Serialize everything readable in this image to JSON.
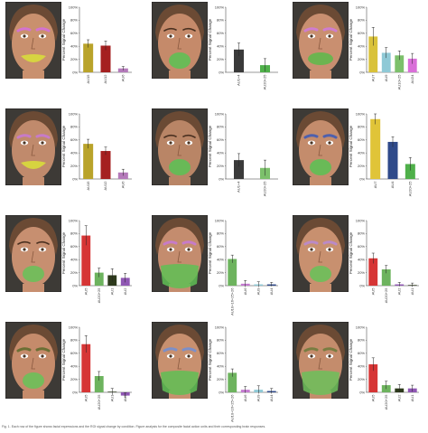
{
  "figure": {
    "caption": "Fig. 1. Each row of the figure shows facial expressions and the ROI signal change by condition. Figure analysis for the composite facial action units and their corresponding brain responses."
  },
  "chart_data": [
    {
      "type": "bar",
      "ylabel": "Percent Signal Change",
      "yticks": [
        "0%",
        "20%",
        "40%",
        "60%",
        "80%",
        "100%"
      ],
      "ylim": [
        0,
        1
      ],
      "categories": [
        "AU15",
        "AU12",
        "AU6"
      ],
      "values": [
        0.44,
        0.41,
        0.06
      ],
      "errors": [
        0.06,
        0.07,
        0.03
      ],
      "colors": [
        "#b9a32a",
        "#a52020",
        "#b47aba"
      ],
      "face": {
        "skin": "#c9906e",
        "mouth": "#d8db3c",
        "brows": "#d66fe1",
        "mouthStyle": "smile"
      }
    },
    {
      "type": "bar",
      "ylabel": "Percent Signal Change",
      "yticks": [
        "0%",
        "20%",
        "40%",
        "60%",
        "80%",
        "100%"
      ],
      "ylim": [
        0,
        1
      ],
      "categories": [
        "AU1+4",
        "AU20+25"
      ],
      "values": [
        0.35,
        0.11
      ],
      "errors": [
        0.1,
        0.1
      ],
      "colors": [
        "#3a3a3a",
        "#4fb04a"
      ],
      "face": {
        "skin": "#c58a6a",
        "mouth": "#5fbf55",
        "brows": "",
        "mouthStyle": "open"
      }
    },
    {
      "type": "bar",
      "ylabel": "Percent Signal Change",
      "yticks": [
        "0%",
        "20%",
        "40%",
        "60%",
        "80%",
        "100%"
      ],
      "ylim": [
        0,
        1
      ],
      "categories": [
        "AU7",
        "AU9",
        "AU10+25",
        "AU24"
      ],
      "values": [
        0.55,
        0.3,
        0.26,
        0.21
      ],
      "errors": [
        0.14,
        0.08,
        0.07,
        0.08
      ],
      "colors": [
        "#d9c23a",
        "#8fc9d6",
        "#7cc06b",
        "#d96fd8"
      ],
      "face": {
        "skin": "#c98f70",
        "mouth": "#62b84c",
        "brows": "#d07ae0",
        "mouthStyle": "wide"
      }
    },
    {
      "type": "bar",
      "ylabel": "Percent Signal Change",
      "yticks": [
        "0%",
        "20%",
        "40%",
        "60%",
        "80%",
        "100%"
      ],
      "ylim": [
        0,
        1
      ],
      "categories": [
        "AU15",
        "AU12",
        "AU6"
      ],
      "values": [
        0.54,
        0.43,
        0.1
      ],
      "errors": [
        0.07,
        0.06,
        0.05
      ],
      "colors": [
        "#b9a32a",
        "#a52020",
        "#b47aba"
      ],
      "face": {
        "skin": "#c08a6c",
        "mouth": "#d8db3c",
        "brows": "#c878d8",
        "mouthStyle": "smile"
      }
    },
    {
      "type": "bar",
      "ylabel": "Percent Signal Change",
      "yticks": [
        "0%",
        "20%",
        "40%",
        "60%",
        "80%",
        "100%"
      ],
      "ylim": [
        0,
        1
      ],
      "categories": [
        "AU1+4",
        "AU20+25"
      ],
      "values": [
        0.29,
        0.17
      ],
      "errors": [
        0.1,
        0.12
      ],
      "colors": [
        "#3a3a3a",
        "#7cc06b"
      ],
      "face": {
        "skin": "#b98566",
        "mouth": "#5fbf55",
        "brows": "",
        "mouthStyle": "open"
      }
    },
    {
      "type": "bar",
      "ylabel": "Percent Signal Change",
      "yticks": [
        "0%",
        "20%",
        "40%",
        "60%",
        "80%",
        "100%"
      ],
      "ylim": [
        0,
        1
      ],
      "categories": [
        "AU7",
        "AU4",
        "AU20+25"
      ],
      "values": [
        0.92,
        0.57,
        0.23
      ],
      "errors": [
        0.08,
        0.08,
        0.1
      ],
      "colors": [
        "#e0c438",
        "#2f4a8a",
        "#4fb04a"
      ],
      "face": {
        "skin": "#c48c6c",
        "mouth": "#5fbf55",
        "brows": "#3a58b8",
        "mouthStyle": "open"
      }
    },
    {
      "type": "bar",
      "ylabel": "Percent Signal Change",
      "yticks": [
        "0%",
        "20%",
        "40%",
        "60%",
        "80%",
        "100%"
      ],
      "ylim": [
        0,
        1
      ],
      "categories": [
        "AU5",
        "AU20+25",
        "AU1",
        "AU2"
      ],
      "values": [
        0.77,
        0.2,
        0.16,
        0.12
      ],
      "errors": [
        0.15,
        0.07,
        0.1,
        0.07
      ],
      "colors": [
        "#d63535",
        "#6db35e",
        "#2d3a1c",
        "#8f57b3"
      ],
      "face": {
        "skin": "#c78f70",
        "mouth": "#6cc05a",
        "brows": "",
        "mouthStyle": "open"
      }
    },
    {
      "type": "bar",
      "ylabel": "Percent Signal Change",
      "yticks": [
        "0%",
        "20%",
        "40%",
        "60%",
        "80%",
        "100%"
      ],
      "ylim": [
        0,
        1
      ],
      "categories": [
        "AU10+16+25+26",
        "AU6",
        "AU9",
        "AU4"
      ],
      "values": [
        0.41,
        0.03,
        0.02,
        0.02
      ],
      "errors": [
        0.06,
        0.05,
        0.04,
        0.03
      ],
      "colors": [
        "#6db35e",
        "#c47ad0",
        "#8fc9d6",
        "#2f4a8a"
      ],
      "face": {
        "skin": "#c48c6e",
        "mouth": "#5fbf55",
        "brows": "#c878d8",
        "mouthStyle": "jaw"
      }
    },
    {
      "type": "bar",
      "ylabel": "Percent Signal Change",
      "yticks": [
        "0%",
        "20%",
        "40%",
        "60%",
        "80%",
        "100%"
      ],
      "ylim": [
        0,
        1
      ],
      "categories": [
        "AU5",
        "AU20+25",
        "AU2",
        "AU1"
      ],
      "values": [
        0.42,
        0.25,
        0.02,
        0.01
      ],
      "errors": [
        0.08,
        0.06,
        0.03,
        0.03
      ],
      "colors": [
        "#d63535",
        "#6db35e",
        "#8f57b3",
        "#2d3a1c"
      ],
      "face": {
        "skin": "#c8906f",
        "mouth": "#6cc05a",
        "brows": "#b98ad6",
        "mouthStyle": "open"
      }
    },
    {
      "type": "bar",
      "ylabel": "Percent Signal Change",
      "yticks": [
        "0%",
        "20%",
        "40%",
        "60%",
        "80%",
        "100%"
      ],
      "ylim": [
        0,
        1
      ],
      "categories": [
        "AU5",
        "AU20+25",
        "AU1",
        "AU2"
      ],
      "values": [
        0.74,
        0.25,
        0.01,
        -0.05
      ],
      "errors": [
        0.13,
        0.07,
        0.05,
        0.04
      ],
      "colors": [
        "#d63535",
        "#6db35e",
        "#2d3a1c",
        "#8f57b3"
      ],
      "face": {
        "skin": "#c58b6b",
        "mouth": "#6cc05a",
        "brows": "#5a6a2a",
        "mouthStyle": "open"
      }
    },
    {
      "type": "bar",
      "ylabel": "Percent Signal Change",
      "yticks": [
        "0%",
        "20%",
        "40%",
        "60%",
        "80%",
        "100%"
      ],
      "ylim": [
        0,
        1
      ],
      "categories": [
        "AU10+16+25+26",
        "AU6",
        "AU9",
        "AU4"
      ],
      "values": [
        0.3,
        0.04,
        0.04,
        0.02
      ],
      "errors": [
        0.06,
        0.05,
        0.06,
        0.04
      ],
      "colors": [
        "#6db35e",
        "#c47ad0",
        "#8fc9d6",
        "#2f4a8a"
      ],
      "face": {
        "skin": "#c8906f",
        "mouth": "#5fbf55",
        "brows": "#6f8fd8",
        "mouthStyle": "jaw"
      }
    },
    {
      "type": "bar",
      "ylabel": "Percent Signal Change",
      "yticks": [
        "0%",
        "20%",
        "40%",
        "60%",
        "80%",
        "100%"
      ],
      "ylim": [
        0,
        1
      ],
      "categories": [
        "AU5",
        "AU20+25",
        "AU2",
        "AU1"
      ],
      "values": [
        0.43,
        0.11,
        0.06,
        0.06
      ],
      "errors": [
        0.1,
        0.06,
        0.06,
        0.05
      ],
      "colors": [
        "#d63535",
        "#6db35e",
        "#2d3a1c",
        "#8f57b3"
      ],
      "face": {
        "skin": "#c48c6c",
        "mouth": "#6cc05a",
        "brows": "#6b7a3a",
        "mouthStyle": "jaw"
      }
    }
  ]
}
